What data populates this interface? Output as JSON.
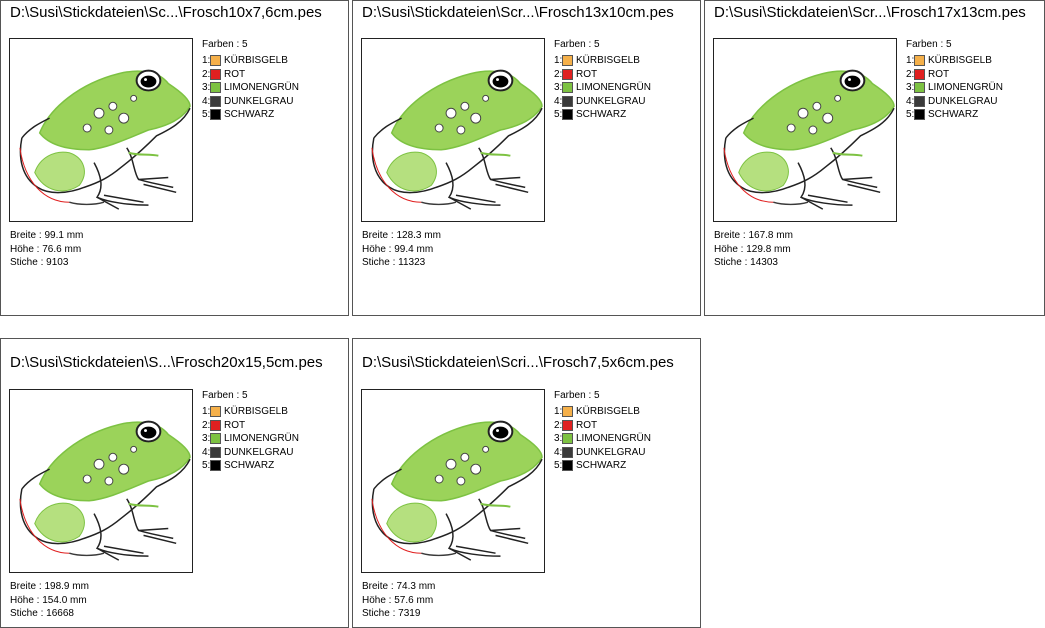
{
  "designs": [
    {
      "path": "D:\\Susi\\Stickdateien\\Sc...\\Frosch10x7,6cm.pes",
      "breite": "Breite : 99.1 mm",
      "hoehe": "Höhe : 76.6 mm",
      "stiche": "Stiche : 9103"
    },
    {
      "path": "D:\\Susi\\Stickdateien\\Scr...\\Frosch13x10cm.pes",
      "breite": "Breite : 128.3 mm",
      "hoehe": "Höhe : 99.4 mm",
      "stiche": "Stiche : 11323"
    },
    {
      "path": "D:\\Susi\\Stickdateien\\Scr...\\Frosch17x13cm.pes",
      "breite": "Breite : 167.8 mm",
      "hoehe": "Höhe : 129.8 mm",
      "stiche": "Stiche : 14303"
    },
    {
      "path": "D:\\Susi\\Stickdateien\\S...\\Frosch20x15,5cm.pes",
      "breite": "Breite : 198.9 mm",
      "hoehe": "Höhe : 154.0 mm",
      "stiche": "Stiche : 16668"
    },
    {
      "path": "D:\\Susi\\Stickdateien\\Scri...\\Frosch7,5x6cm.pes",
      "breite": "Breite : 74.3 mm",
      "hoehe": "Höhe : 57.6 mm",
      "stiche": "Stiche : 7319"
    }
  ],
  "colors_title": "Farben : 5",
  "colors": [
    {
      "index": "1:",
      "name": "KÜRBISGELB",
      "hex": "#f5b04a"
    },
    {
      "index": "2:",
      "name": "ROT",
      "hex": "#e02020"
    },
    {
      "index": "3:",
      "name": "LIMONENGRÜN",
      "hex": "#7dc242"
    },
    {
      "index": "4:",
      "name": "DUNKELGRAU",
      "hex": "#3a3a3a"
    },
    {
      "index": "5:",
      "name": "SCHWARZ",
      "hex": "#000000"
    }
  ]
}
